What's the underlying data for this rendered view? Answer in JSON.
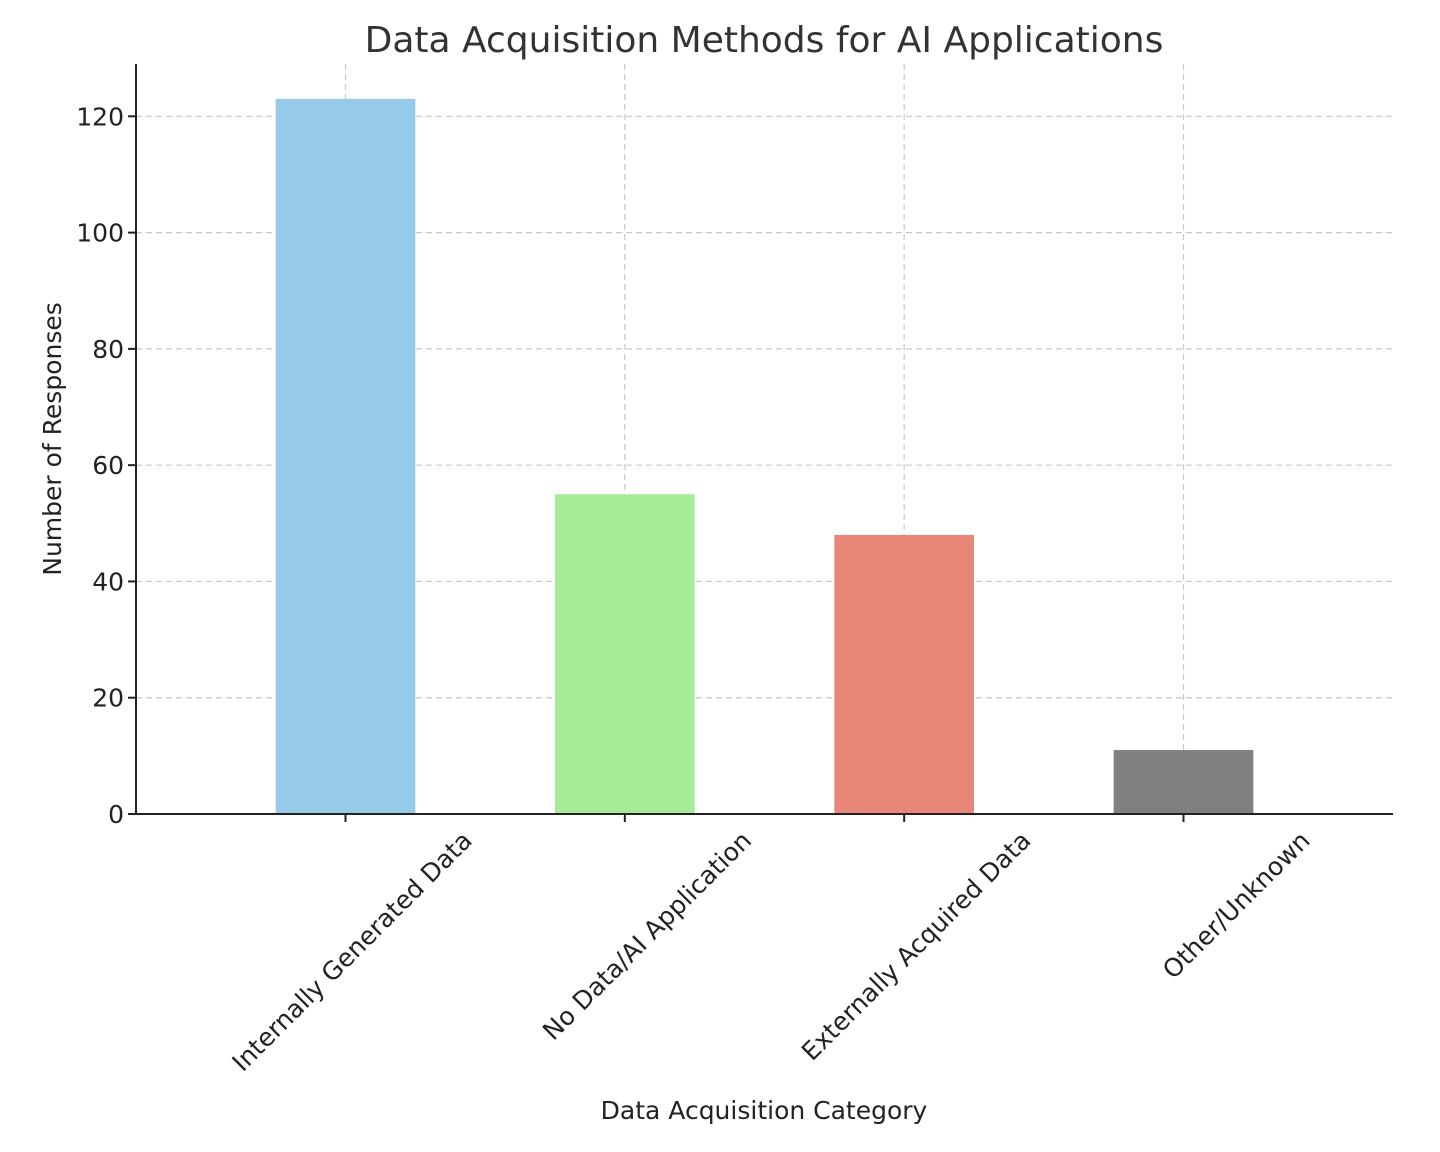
{
  "chart_data": {
    "type": "bar",
    "title": "Data Acquisition Methods for AI Applications",
    "xlabel": "Data Acquisition Category",
    "ylabel": "Number of Responses",
    "categories": [
      "Internally Generated Data",
      "No Data/AI Application",
      "Externally Acquired Data",
      "Other/Unknown"
    ],
    "values": [
      123,
      55,
      48,
      11
    ],
    "colors": [
      "#95cbe8",
      "#a6eb96",
      "#e88677",
      "#808080"
    ],
    "ylim": [
      0,
      129
    ],
    "yticks": [
      0,
      20,
      40,
      60,
      80,
      100,
      120
    ],
    "grid": true,
    "legend": "none"
  }
}
